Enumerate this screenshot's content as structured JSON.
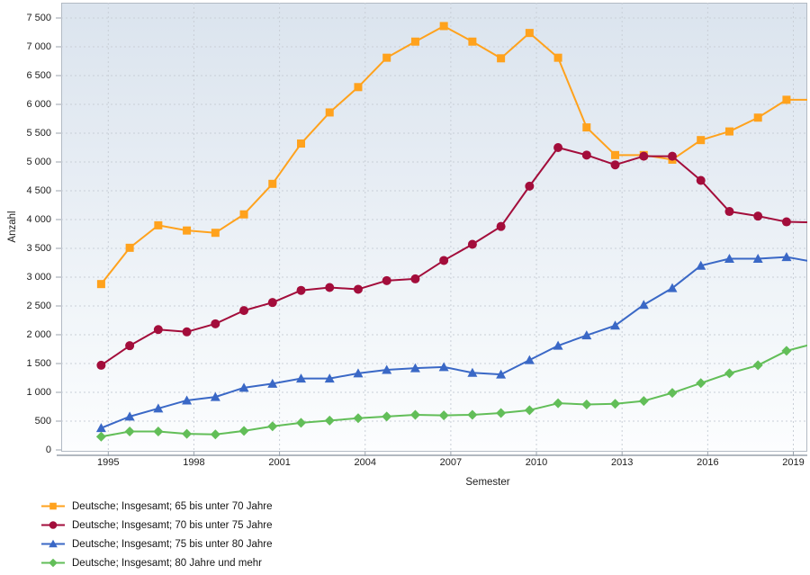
{
  "axes": {
    "y_title": "Anzahl",
    "x_title": "Semester"
  },
  "chart_data": {
    "type": "line",
    "title": "",
    "xlabel": "Semester",
    "ylabel": "Anzahl",
    "ylim": [
      0,
      7500
    ],
    "y_tick_step": 500,
    "grid": true,
    "legend_position": "bottom-left",
    "x_tick_labels": [
      "1995",
      "1998",
      "2001",
      "2004",
      "2007",
      "2010",
      "2013",
      "2016",
      "2019"
    ],
    "y_tick_labels": [
      "7 500",
      "7 000",
      "6 500",
      "6 000",
      "5 500",
      "5 000",
      "4 500",
      "4 000",
      "3 500",
      "3 000",
      "2 500",
      "2 000",
      "1 500",
      "1 000",
      "500",
      "0"
    ],
    "x": [
      1994,
      1995,
      1996,
      1997,
      1998,
      1999,
      2000,
      2001,
      2002,
      2003,
      2004,
      2005,
      2006,
      2007,
      2008,
      2009,
      2010,
      2011,
      2012,
      2013,
      2014,
      2015,
      2016,
      2017,
      2018,
      2019
    ],
    "series": [
      {
        "name": "Deutsche; Insgesamt; 65 bis unter 70 Jahre",
        "marker": "square",
        "color": "#FFA21D",
        "values": [
          2880,
          3510,
          3900,
          3810,
          3770,
          4090,
          4620,
          5320,
          5860,
          6300,
          6810,
          7090,
          7360,
          7090,
          6800,
          7240,
          6810,
          5600,
          5120,
          5120,
          5040,
          5380,
          5530,
          5770,
          6080,
          6080
        ]
      },
      {
        "name": "Deutsche; Insgesamt; 70 bis unter 75 Jahre",
        "marker": "circle",
        "color": "#A30D3B",
        "values": [
          1470,
          1810,
          2090,
          2050,
          2190,
          2420,
          2560,
          2770,
          2820,
          2790,
          2940,
          2970,
          3290,
          3570,
          3880,
          4580,
          5250,
          5120,
          4950,
          5100,
          5100,
          4680,
          4140,
          4060,
          3960,
          3950
        ]
      },
      {
        "name": "Deutsche; Insgesamt; 75 bis unter 80 Jahre",
        "marker": "triangle",
        "color": "#3A68C6",
        "values": [
          380,
          580,
          720,
          860,
          920,
          1080,
          1150,
          1240,
          1240,
          1330,
          1390,
          1420,
          1440,
          1340,
          1310,
          1560,
          1810,
          1990,
          2160,
          2520,
          2810,
          3200,
          3320,
          3320,
          3350,
          3260
        ]
      },
      {
        "name": "Deutsche; Insgesamt; 80 Jahre und mehr",
        "marker": "diamond",
        "color": "#62BE58",
        "values": [
          230,
          320,
          320,
          280,
          270,
          330,
          410,
          470,
          510,
          550,
          580,
          610,
          600,
          610,
          640,
          690,
          810,
          790,
          800,
          850,
          990,
          1160,
          1330,
          1470,
          1720,
          1850
        ]
      }
    ]
  }
}
